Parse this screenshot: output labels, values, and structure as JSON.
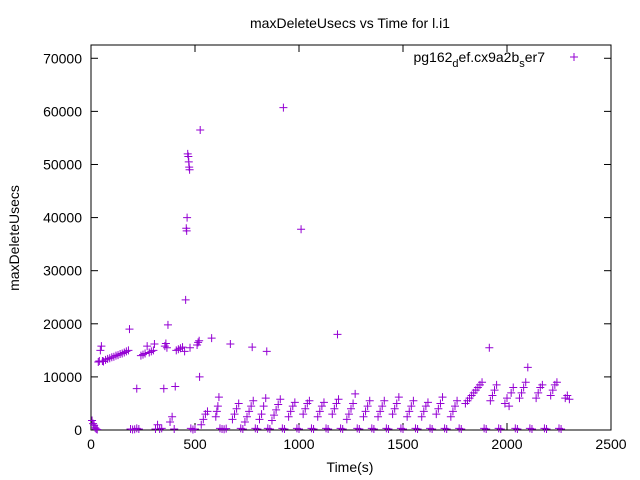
{
  "chart_data": {
    "type": "scatter",
    "title": "maxDeleteUsecs vs Time for l.i1",
    "xlabel": "Time(s)",
    "ylabel": "maxDeleteUsecs",
    "xlim": [
      0,
      2500
    ],
    "ylim": [
      0,
      72500
    ],
    "x_ticks": [
      0,
      500,
      1000,
      1500,
      2000,
      2500
    ],
    "y_ticks": [
      0,
      10000,
      20000,
      30000,
      40000,
      50000,
      60000,
      70000
    ],
    "x_tick_labels": [
      "0",
      "500",
      "1000",
      "1500",
      "2000",
      "2500"
    ],
    "y_tick_labels": [
      "0",
      "10000",
      "20000",
      "30000",
      "40000",
      "50000",
      "60000",
      "70000"
    ],
    "grid": false,
    "legend_position": "top-right",
    "marker": "plus",
    "color": "#9400d3",
    "series": [
      {
        "name": "pg162_def.cx9a2b_ser7",
        "legend_text": {
          "a": "pg162",
          "a_sub": "d",
          "b": "ef.cx9a2b",
          "b_sub": "s",
          "c": "er7"
        },
        "points": [
          [
            5,
            1800
          ],
          [
            10,
            1200
          ],
          [
            15,
            900
          ],
          [
            20,
            400
          ],
          [
            25,
            200
          ],
          [
            30,
            100
          ],
          [
            35,
            12800
          ],
          [
            40,
            13000
          ],
          [
            45,
            15000
          ],
          [
            50,
            15800
          ],
          [
            55,
            13000
          ],
          [
            60,
            12900
          ],
          [
            70,
            13200
          ],
          [
            80,
            13400
          ],
          [
            90,
            13500
          ],
          [
            100,
            13700
          ],
          [
            110,
            13800
          ],
          [
            120,
            14000
          ],
          [
            130,
            14100
          ],
          [
            140,
            14300
          ],
          [
            150,
            14400
          ],
          [
            160,
            14600
          ],
          [
            170,
            14800
          ],
          [
            180,
            15000
          ],
          [
            185,
            19000
          ],
          [
            190,
            200
          ],
          [
            200,
            100
          ],
          [
            210,
            150
          ],
          [
            220,
            300
          ],
          [
            230,
            200
          ],
          [
            220,
            7800
          ],
          [
            240,
            14000
          ],
          [
            250,
            14200
          ],
          [
            260,
            14400
          ],
          [
            270,
            15800
          ],
          [
            280,
            14600
          ],
          [
            290,
            14800
          ],
          [
            300,
            15000
          ],
          [
            305,
            16200
          ],
          [
            310,
            200
          ],
          [
            320,
            1000
          ],
          [
            330,
            200
          ],
          [
            340,
            300
          ],
          [
            350,
            7800
          ],
          [
            355,
            15800
          ],
          [
            360,
            16300
          ],
          [
            365,
            15500
          ],
          [
            370,
            19800
          ],
          [
            380,
            1500
          ],
          [
            390,
            2500
          ],
          [
            400,
            200
          ],
          [
            405,
            8200
          ],
          [
            410,
            15000
          ],
          [
            420,
            15200
          ],
          [
            430,
            15400
          ],
          [
            440,
            15600
          ],
          [
            450,
            14800
          ],
          [
            455,
            24500
          ],
          [
            458,
            38000
          ],
          [
            460,
            37500
          ],
          [
            462,
            40000
          ],
          [
            465,
            52000
          ],
          [
            468,
            51500
          ],
          [
            470,
            50500
          ],
          [
            472,
            49500
          ],
          [
            474,
            49000
          ],
          [
            476,
            15500
          ],
          [
            480,
            300
          ],
          [
            490,
            100
          ],
          [
            500,
            200
          ],
          [
            510,
            16000
          ],
          [
            515,
            16500
          ],
          [
            520,
            16800
          ],
          [
            522,
            10000
          ],
          [
            525,
            56500
          ],
          [
            530,
            1000
          ],
          [
            540,
            2000
          ],
          [
            550,
            3000
          ],
          [
            560,
            3500
          ],
          [
            580,
            17300
          ],
          [
            600,
            2500
          ],
          [
            605,
            3500
          ],
          [
            610,
            4500
          ],
          [
            615,
            6200
          ],
          [
            620,
            300
          ],
          [
            630,
            200
          ],
          [
            640,
            150
          ],
          [
            650,
            250
          ],
          [
            670,
            16200
          ],
          [
            680,
            2000
          ],
          [
            690,
            3000
          ],
          [
            700,
            4000
          ],
          [
            710,
            5000
          ],
          [
            720,
            300
          ],
          [
            730,
            200
          ],
          [
            740,
            1500
          ],
          [
            750,
            2500
          ],
          [
            760,
            3500
          ],
          [
            770,
            4500
          ],
          [
            775,
            15600
          ],
          [
            780,
            5500
          ],
          [
            790,
            300
          ],
          [
            800,
            200
          ],
          [
            810,
            2000
          ],
          [
            820,
            3000
          ],
          [
            830,
            4500
          ],
          [
            840,
            6000
          ],
          [
            845,
            14800
          ],
          [
            850,
            300
          ],
          [
            860,
            200
          ],
          [
            870,
            1800
          ],
          [
            880,
            2800
          ],
          [
            890,
            3800
          ],
          [
            900,
            4800
          ],
          [
            910,
            5800
          ],
          [
            920,
            300
          ],
          [
            925,
            60700
          ],
          [
            930,
            200
          ],
          [
            950,
            2500
          ],
          [
            960,
            3500
          ],
          [
            970,
            4500
          ],
          [
            980,
            5200
          ],
          [
            990,
            300
          ],
          [
            1000,
            200
          ],
          [
            1010,
            37800
          ],
          [
            1020,
            3000
          ],
          [
            1030,
            4000
          ],
          [
            1040,
            5000
          ],
          [
            1050,
            5500
          ],
          [
            1060,
            300
          ],
          [
            1070,
            200
          ],
          [
            1090,
            2500
          ],
          [
            1100,
            3500
          ],
          [
            1110,
            4500
          ],
          [
            1120,
            5200
          ],
          [
            1130,
            300
          ],
          [
            1140,
            200
          ],
          [
            1160,
            3000
          ],
          [
            1170,
            4000
          ],
          [
            1180,
            5000
          ],
          [
            1185,
            18000
          ],
          [
            1190,
            5800
          ],
          [
            1200,
            300
          ],
          [
            1210,
            200
          ],
          [
            1230,
            2000
          ],
          [
            1240,
            3000
          ],
          [
            1250,
            4000
          ],
          [
            1260,
            5000
          ],
          [
            1270,
            6800
          ],
          [
            1280,
            300
          ],
          [
            1290,
            200
          ],
          [
            1310,
            2500
          ],
          [
            1320,
            3500
          ],
          [
            1330,
            4500
          ],
          [
            1340,
            5500
          ],
          [
            1350,
            300
          ],
          [
            1360,
            200
          ],
          [
            1380,
            2500
          ],
          [
            1390,
            3500
          ],
          [
            1400,
            4500
          ],
          [
            1410,
            5500
          ],
          [
            1420,
            300
          ],
          [
            1430,
            200
          ],
          [
            1450,
            3000
          ],
          [
            1460,
            4000
          ],
          [
            1470,
            5000
          ],
          [
            1480,
            6200
          ],
          [
            1490,
            300
          ],
          [
            1500,
            200
          ],
          [
            1520,
            2500
          ],
          [
            1530,
            3500
          ],
          [
            1540,
            4500
          ],
          [
            1550,
            5500
          ],
          [
            1560,
            300
          ],
          [
            1570,
            200
          ],
          [
            1590,
            2500
          ],
          [
            1600,
            3500
          ],
          [
            1610,
            4500
          ],
          [
            1620,
            5200
          ],
          [
            1630,
            300
          ],
          [
            1640,
            200
          ],
          [
            1660,
            3000
          ],
          [
            1670,
            4000
          ],
          [
            1680,
            5000
          ],
          [
            1690,
            6200
          ],
          [
            1700,
            300
          ],
          [
            1710,
            200
          ],
          [
            1730,
            2500
          ],
          [
            1740,
            3500
          ],
          [
            1750,
            4500
          ],
          [
            1760,
            5500
          ],
          [
            1770,
            300
          ],
          [
            1780,
            200
          ],
          [
            1800,
            5000
          ],
          [
            1810,
            5500
          ],
          [
            1820,
            6000
          ],
          [
            1830,
            6500
          ],
          [
            1840,
            7000
          ],
          [
            1850,
            7500
          ],
          [
            1860,
            8000
          ],
          [
            1870,
            8500
          ],
          [
            1880,
            9000
          ],
          [
            1890,
            300
          ],
          [
            1900,
            200
          ],
          [
            1915,
            15500
          ],
          [
            1920,
            5500
          ],
          [
            1930,
            6500
          ],
          [
            1940,
            7500
          ],
          [
            1950,
            8500
          ],
          [
            1960,
            300
          ],
          [
            1970,
            200
          ],
          [
            1990,
            5000
          ],
          [
            2000,
            6000
          ],
          [
            2010,
            4500
          ],
          [
            2020,
            7000
          ],
          [
            2030,
            8000
          ],
          [
            2040,
            300
          ],
          [
            2050,
            200
          ],
          [
            2060,
            6000
          ],
          [
            2070,
            7000
          ],
          [
            2080,
            8000
          ],
          [
            2090,
            9000
          ],
          [
            2100,
            11800
          ],
          [
            2110,
            300
          ],
          [
            2120,
            200
          ],
          [
            2140,
            6000
          ],
          [
            2150,
            7000
          ],
          [
            2160,
            8000
          ],
          [
            2170,
            8500
          ],
          [
            2180,
            300
          ],
          [
            2190,
            200
          ],
          [
            2210,
            6500
          ],
          [
            2220,
            7500
          ],
          [
            2230,
            8500
          ],
          [
            2240,
            9000
          ],
          [
            2250,
            300
          ],
          [
            2260,
            200
          ],
          [
            2280,
            6000
          ],
          [
            2290,
            6500
          ],
          [
            2300,
            5800
          ]
        ]
      }
    ]
  }
}
